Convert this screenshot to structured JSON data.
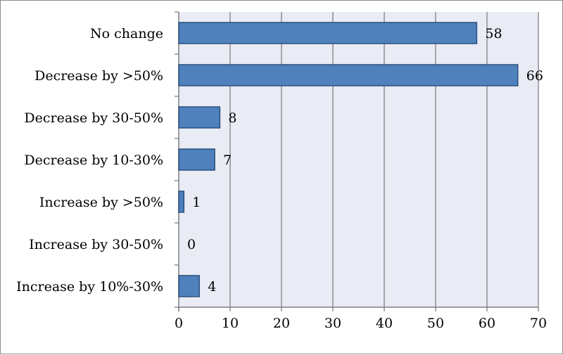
{
  "chart_data": {
    "type": "bar",
    "orientation": "horizontal",
    "categories": [
      "No change",
      "Decrease by >50%",
      "Decrease by 30-50%",
      "Decrease by 10-30%",
      "Increase by >50%",
      "Increase by 30-50%",
      "Increase by 10%-30%"
    ],
    "values": [
      58,
      66,
      8,
      7,
      1,
      0,
      4
    ],
    "data_labels": [
      "58",
      "66",
      "8",
      "7",
      "1",
      "0",
      "4"
    ],
    "xlim": [
      0,
      70
    ],
    "xticks": [
      0,
      10,
      20,
      30,
      40,
      50,
      60,
      70
    ],
    "xtick_labels": [
      "0",
      "10",
      "20",
      "30",
      "40",
      "50",
      "60",
      "70"
    ],
    "grid": "vertical",
    "legend": "none",
    "colors": {
      "bar_fill": "#4f81bd",
      "bar_stroke": "#2c4f7c",
      "plot_background": "#e9ebf5",
      "gridline": "#808080"
    }
  }
}
